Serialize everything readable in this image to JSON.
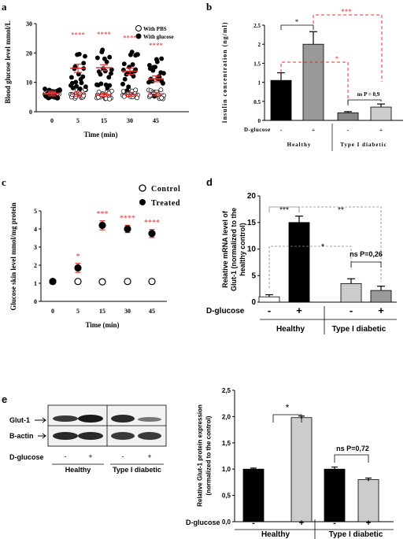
{
  "panels": {
    "a": {
      "letter": "a",
      "ylabel": "Blood glucose level mmol/L",
      "xlabel": "Time (min)",
      "legend": [
        "With PBS",
        "With glucose"
      ],
      "stars": [
        "****",
        "****",
        "****",
        "****"
      ]
    },
    "b": {
      "letter": "b",
      "ylabel": "Insulin concentration (ng/ml)",
      "row_label": "D-glucose",
      "groups": [
        "Healthy",
        "Type I diabetic"
      ],
      "signs": [
        "-",
        "+",
        "-",
        "+"
      ],
      "annotations": [
        "*",
        "***",
        "*",
        "ns P = 0,9"
      ]
    },
    "c": {
      "letter": "c",
      "ylabel": "Glucose skin level mmol/mg protein",
      "xlabel": "Time (min)",
      "legend": [
        "Control",
        "Treated"
      ],
      "stars": [
        "*",
        "***",
        "****",
        "****"
      ]
    },
    "d": {
      "letter": "d",
      "ylabel": "Relative mRNA level of Glut-1 (normalized to the healthy control)",
      "row_label": "D-glucose",
      "groups": [
        "Healthy",
        "Type I diabetic"
      ],
      "signs": [
        "-",
        "+",
        "-",
        "+"
      ],
      "annotations": [
        "***",
        "**",
        "*",
        "ns P=0,26"
      ]
    },
    "e": {
      "letter": "e",
      "blot_labels": [
        "Glut-1",
        "B-actin"
      ],
      "row_label": "D-glucose",
      "signs": [
        "-",
        "+",
        "-",
        "+"
      ],
      "groups": [
        "Healthy",
        "Type I diabetic"
      ],
      "ylabel": "Relative Glut-1 protein expression (normalized to the control)",
      "annotations": [
        "*",
        "ns P=0,72"
      ]
    }
  },
  "chart_data": [
    {
      "panel": "a",
      "type": "scatter",
      "categories": [
        "0",
        "5",
        "15",
        "30",
        "45"
      ],
      "ylim": [
        0,
        30
      ],
      "yticks": [
        0,
        10,
        20,
        30
      ],
      "series": [
        {
          "name": "With PBS",
          "means": [
            6.0,
            6.0,
            5.8,
            5.9,
            6.0
          ],
          "sem": [
            0.6,
            0.7,
            0.6,
            0.7,
            0.6
          ]
        },
        {
          "name": "With glucose",
          "means": [
            6.2,
            14.8,
            15.0,
            13.8,
            11.2
          ],
          "sem": [
            0.8,
            1.4,
            1.0,
            1.1,
            1.0
          ]
        }
      ]
    },
    {
      "panel": "b",
      "type": "bar",
      "categories": [
        "Healthy -",
        "Healthy +",
        "Type I diabetic -",
        "Type I diabetic +"
      ],
      "values": [
        1.05,
        2.0,
        0.2,
        0.35
      ],
      "errors": [
        0.2,
        0.33,
        0.03,
        0.08
      ],
      "ylim": [
        0,
        2.5
      ],
      "yticks": [
        "0",
        "0.5",
        "1",
        "1.5",
        "2",
        "2.5"
      ]
    },
    {
      "panel": "c",
      "type": "scatter",
      "categories": [
        "0",
        "5",
        "15",
        "30",
        "45"
      ],
      "ylim": [
        0,
        5
      ],
      "yticks": [
        0,
        1,
        2,
        3,
        4,
        5
      ],
      "series": [
        {
          "name": "Control",
          "values": [
            1.1,
            1.1,
            1.08,
            1.1,
            1.1
          ],
          "errors": [
            0.05,
            0.12,
            0.12,
            0.12,
            0.12
          ]
        },
        {
          "name": "Treated",
          "values": [
            1.1,
            1.85,
            4.2,
            4.0,
            3.75
          ],
          "errors": [
            0.05,
            0.25,
            0.25,
            0.2,
            0.22
          ]
        }
      ]
    },
    {
      "panel": "d",
      "type": "bar",
      "categories": [
        "Healthy -",
        "Healthy +",
        "Type I diabetic -",
        "Type I diabetic +"
      ],
      "values": [
        1.0,
        15.0,
        3.5,
        2.2
      ],
      "errors": [
        0.4,
        1.2,
        0.9,
        0.8
      ],
      "ylim": [
        0,
        20
      ],
      "yticks": [
        "0",
        "5",
        "10",
        "15",
        "20"
      ]
    },
    {
      "panel": "e",
      "type": "bar",
      "categories": [
        "Healthy -",
        "Healthy +",
        "Type I diabetic -",
        "Type I diabetic +"
      ],
      "values": [
        1.0,
        1.98,
        1.0,
        0.8
      ],
      "errors": [
        0.02,
        0.03,
        0.04,
        0.03
      ],
      "ylim": [
        0,
        2.5
      ],
      "yticks": [
        "0,0",
        "0,5",
        "1,0",
        "1,5",
        "2,0",
        "2,5"
      ]
    }
  ],
  "colors": {
    "star_red": "#e03030",
    "dark_bar": "#000000",
    "mid_bar": "#999999",
    "light_bar": "#cccccc"
  }
}
